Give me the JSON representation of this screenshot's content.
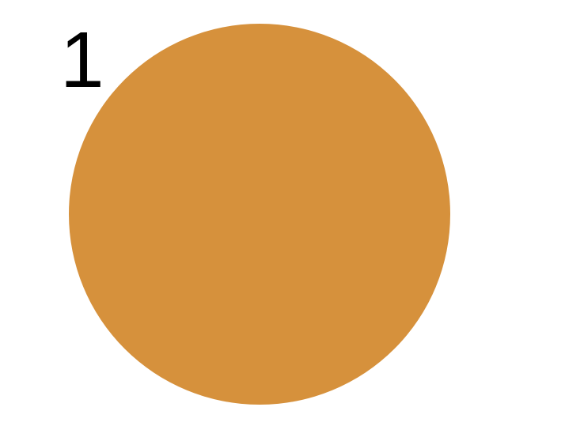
{
  "label": "1",
  "circle": {
    "color": "#D6913C"
  }
}
